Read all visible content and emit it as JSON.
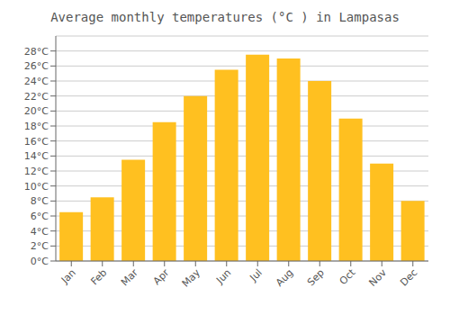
{
  "chart_data": {
    "type": "bar",
    "title": "Average monthly temperatures (°C ) in Lampasas",
    "categories": [
      "Jan",
      "Feb",
      "Mar",
      "Apr",
      "May",
      "Jun",
      "Jul",
      "Aug",
      "Sep",
      "Oct",
      "Nov",
      "Dec"
    ],
    "values": [
      6.5,
      8.5,
      13.5,
      18.5,
      22.0,
      25.5,
      27.5,
      27.0,
      24.0,
      19.0,
      13.0,
      8.0
    ],
    "color": "#FFC020",
    "ylim": [
      0,
      30
    ],
    "yticks": [
      {
        "value": 0,
        "label": "0°C"
      },
      {
        "value": 2,
        "label": "2°C"
      },
      {
        "value": 4,
        "label": "4°C"
      },
      {
        "value": 6,
        "label": "6°C"
      },
      {
        "value": 8,
        "label": "8°C"
      },
      {
        "value": 10,
        "label": "10°C"
      },
      {
        "value": 12,
        "label": "12°C"
      },
      {
        "value": 14,
        "label": "14°C"
      },
      {
        "value": 16,
        "label": "16°C"
      },
      {
        "value": 18,
        "label": "18°C"
      },
      {
        "value": 20,
        "label": "20°C"
      },
      {
        "value": 22,
        "label": "22°C"
      },
      {
        "value": 24,
        "label": "24°C"
      },
      {
        "value": 26,
        "label": "26°C"
      },
      {
        "value": 28,
        "label": "28°C"
      }
    ],
    "grid": true
  }
}
